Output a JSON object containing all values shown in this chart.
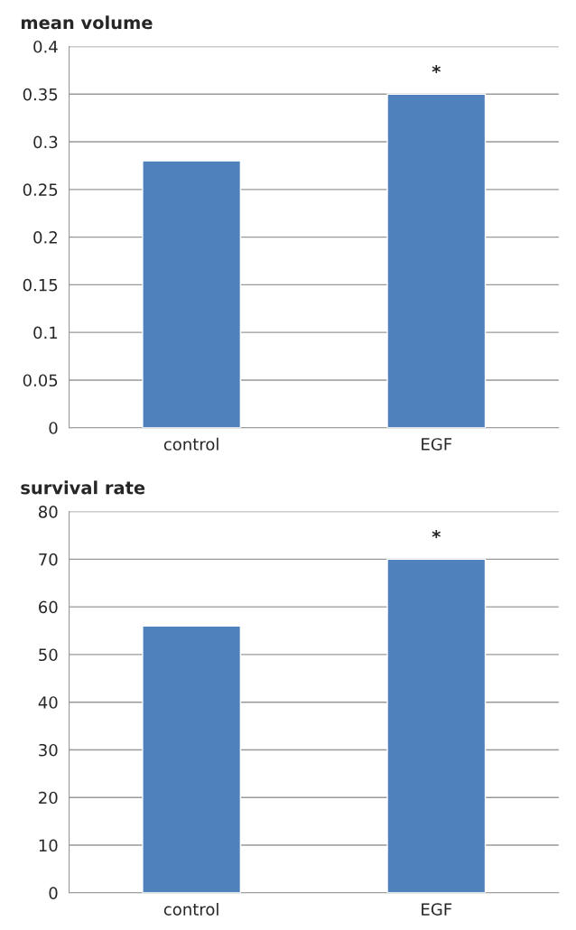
{
  "chart_data": [
    {
      "type": "bar",
      "title": "mean volume",
      "categories": [
        "control",
        "EGF"
      ],
      "values": [
        0.28,
        0.35
      ],
      "color": "#4f81bd",
      "ylim": [
        0,
        0.4
      ],
      "yticks": [
        0,
        0.05,
        0.1,
        0.15,
        0.2,
        0.25,
        0.3,
        0.35,
        0.4
      ],
      "grid": "y",
      "annotations": [
        {
          "text": "*",
          "x": "EGF",
          "y": 0.35
        }
      ]
    },
    {
      "type": "bar",
      "title": "survival rate",
      "categories": [
        "control",
        "EGF"
      ],
      "values": [
        56,
        70
      ],
      "color": "#4f81bd",
      "ylim": [
        0,
        80
      ],
      "yticks": [
        0,
        10,
        20,
        30,
        40,
        50,
        60,
        70,
        80
      ],
      "grid": "y",
      "annotations": [
        {
          "text": "*",
          "x": "EGF",
          "y": 70
        }
      ]
    }
  ]
}
